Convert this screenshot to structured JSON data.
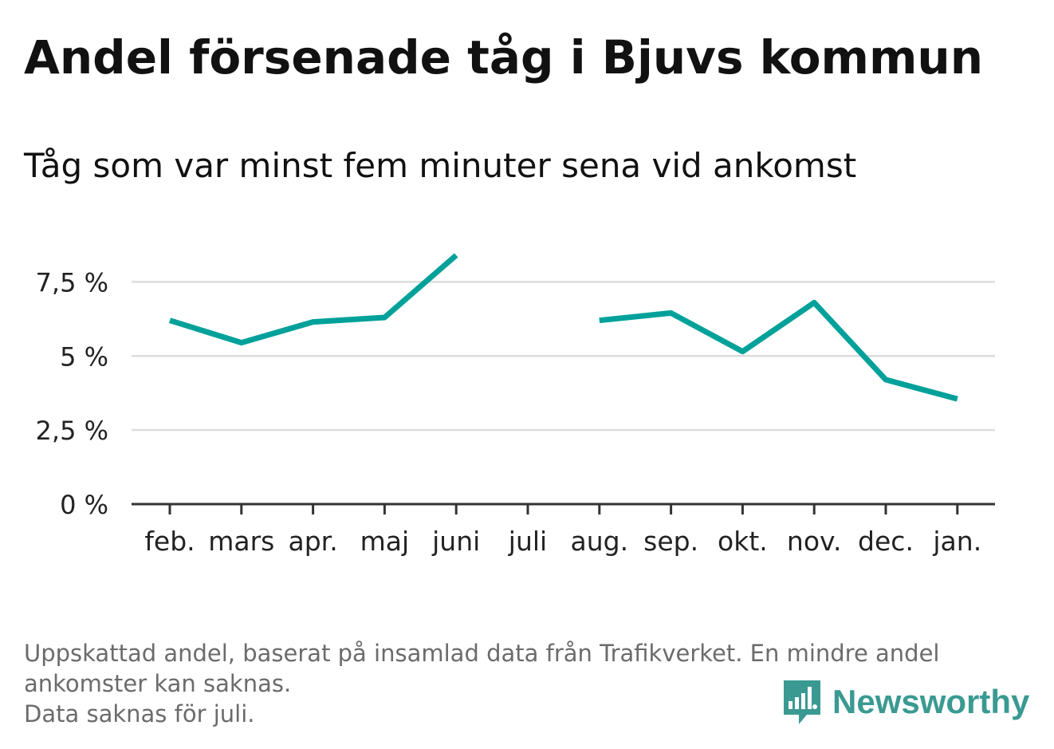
{
  "chart_data": {
    "type": "line",
    "title": "Andel försenade tåg i Bjuvs kommun",
    "subtitle": "Tåg som var minst fem minuter sena vid ankomst",
    "categories": [
      "feb.",
      "mars",
      "apr.",
      "maj",
      "juni",
      "juli",
      "aug.",
      "sep.",
      "okt.",
      "nov.",
      "dec.",
      "jan."
    ],
    "series": [
      {
        "values": [
          6.2,
          5.45,
          6.15,
          6.3,
          8.4,
          null,
          6.2,
          6.45,
          5.15,
          6.8,
          4.2,
          3.55
        ]
      }
    ],
    "ylim": [
      0,
      8.4
    ],
    "yticks": [
      0,
      2.5,
      5,
      7.5
    ],
    "ytick_labels": [
      "0 %",
      "2,5 %",
      "5 %",
      "7,5 %"
    ],
    "xlabel": "",
    "ylabel": "",
    "grid": true,
    "line_color": "#00a19a",
    "grid_color": "#dddddd",
    "axis_color": "#333333"
  },
  "footnote": {
    "line1": "Uppskattad andel, baserat på insamlad data från Trafikverket. En mindre andel",
    "line2": "ankomster kan saknas.",
    "line3": "Data saknas för juli."
  },
  "brand": {
    "name": "Newsworthy",
    "icon": "newsworthy-logo-icon",
    "color": "#3a9a92"
  }
}
